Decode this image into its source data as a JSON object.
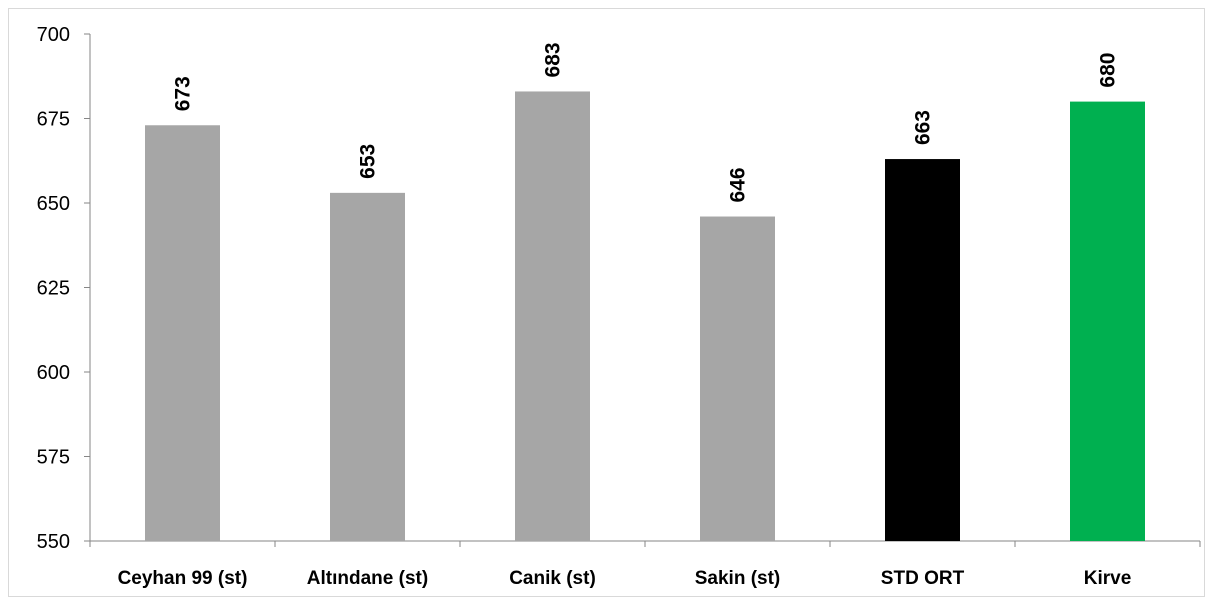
{
  "chart_data": {
    "type": "bar",
    "title": "",
    "xlabel": "",
    "ylabel": "",
    "categories": [
      "Ceyhan 99 (st)",
      "Altındane (st)",
      "Canik (st)",
      "Sakin (st)",
      "STD ORT",
      "Kirve"
    ],
    "values": [
      673,
      653,
      683,
      646,
      663,
      680
    ],
    "data_labels": [
      "673",
      "653",
      "683",
      "646",
      "663",
      "680"
    ],
    "bar_colors": [
      "#a6a6a6",
      "#a6a6a6",
      "#a6a6a6",
      "#a6a6a6",
      "#000000",
      "#00b050"
    ],
    "ylim": [
      550,
      700
    ],
    "yticks": [
      550,
      575,
      600,
      625,
      650,
      675,
      700
    ],
    "grid": false,
    "legend": "none"
  }
}
